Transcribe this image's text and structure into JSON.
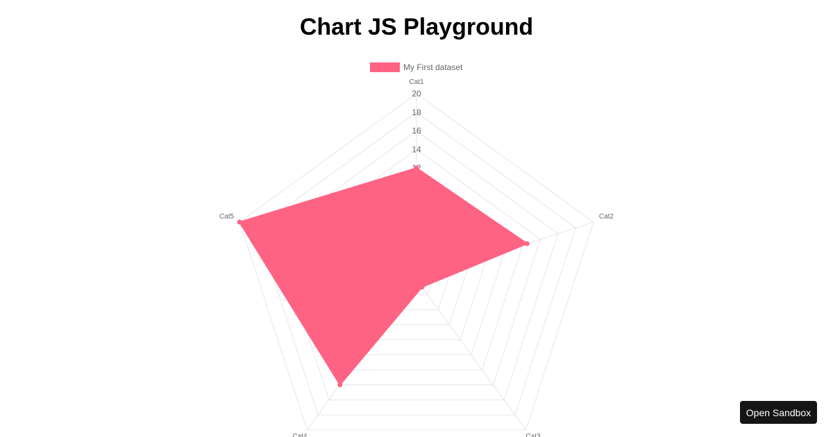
{
  "page": {
    "title": "Chart JS Playground"
  },
  "sandbox_button": {
    "label": "Open Sandbox"
  },
  "colors": {
    "dataset_fill": "#ff6384",
    "grid": "#e6e6e6",
    "tick_text": "#666666"
  },
  "chart_data": {
    "type": "radar",
    "categories": [
      "Cat1",
      "Cat2",
      "Cat3",
      "Cat4",
      "Cat5"
    ],
    "series": [
      {
        "name": "My First dataset",
        "values": [
          12,
          12.5,
          1,
          14,
          20
        ]
      }
    ],
    "r_ticks": [
      "12",
      "14",
      "16",
      "18",
      "20"
    ],
    "rlim": [
      0,
      20
    ],
    "grid": true,
    "legend": "top"
  }
}
